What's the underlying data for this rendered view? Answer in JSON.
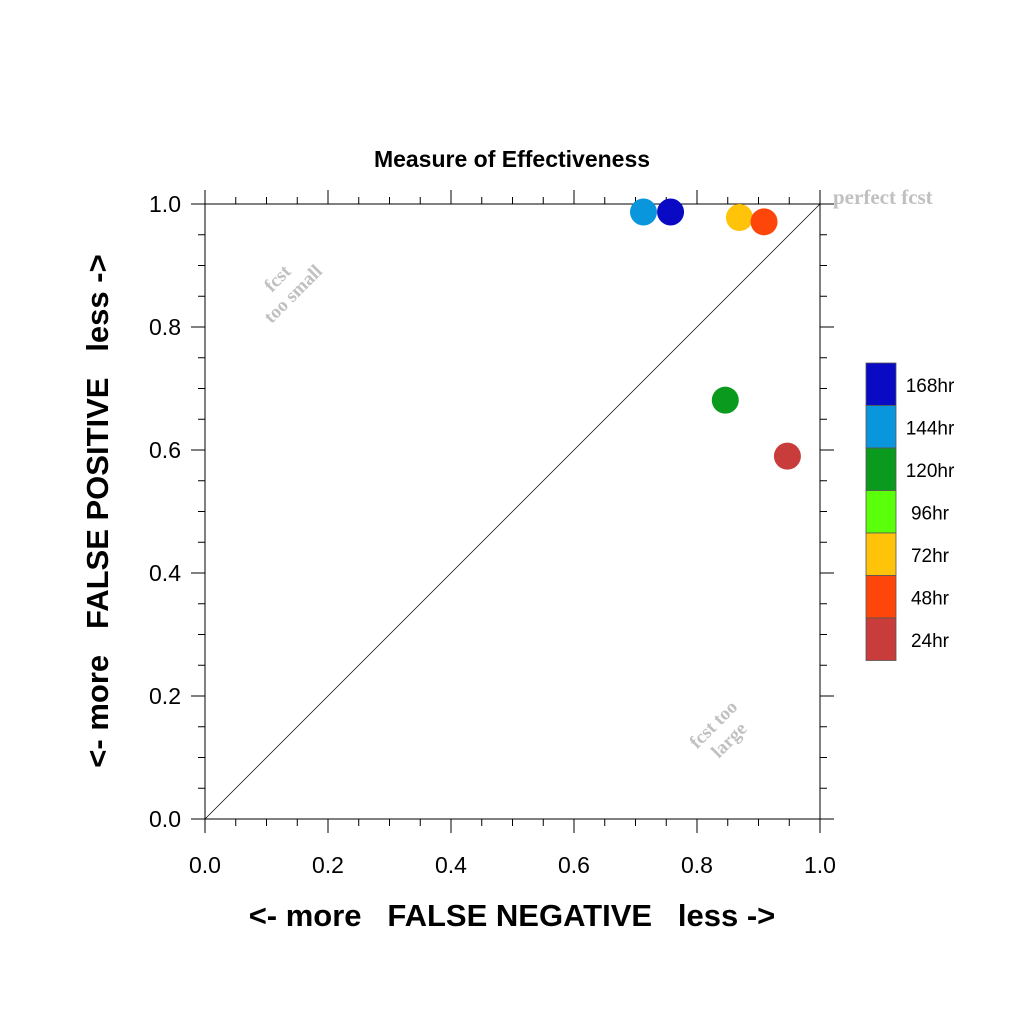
{
  "chart_data": {
    "type": "scatter",
    "title": "Measure of Effectiveness",
    "xlabel": "<- more   FALSE NEGATIVE   less ->",
    "ylabel": "<- more   FALSE POSITIVE   less ->",
    "xlim": [
      0.0,
      1.0
    ],
    "ylim": [
      0.0,
      1.0
    ],
    "x_ticks": [
      "0.0",
      "0.2",
      "0.4",
      "0.6",
      "0.8",
      "1.0"
    ],
    "y_ticks": [
      "0.0",
      "0.2",
      "0.4",
      "0.6",
      "0.8",
      "1.0"
    ],
    "grid": false,
    "diagonal_line": true,
    "legend_position": "right",
    "annotations": {
      "perfect": "perfect fcst",
      "too_small_1": "fcst",
      "too_small_2": "too small",
      "too_large_1": "fcst too",
      "too_large_2": "large"
    },
    "series": [
      {
        "name": "168hr",
        "color": "#0a0ac4",
        "x": 0.757,
        "y": 0.987
      },
      {
        "name": "144hr",
        "color": "#0a96dc",
        "x": 0.713,
        "y": 0.987
      },
      {
        "name": "120hr",
        "color": "#0a9a1e",
        "x": 0.846,
        "y": 0.681
      },
      {
        "name": "96hr",
        "color": "#5aff0a",
        "x": null,
        "y": null
      },
      {
        "name": "72hr",
        "color": "#ffc40a",
        "x": 0.869,
        "y": 0.978
      },
      {
        "name": "48hr",
        "color": "#ff460a",
        "x": 0.909,
        "y": 0.971
      },
      {
        "name": "24hr",
        "color": "#c83c3c",
        "x": 0.947,
        "y": 0.59
      }
    ]
  }
}
